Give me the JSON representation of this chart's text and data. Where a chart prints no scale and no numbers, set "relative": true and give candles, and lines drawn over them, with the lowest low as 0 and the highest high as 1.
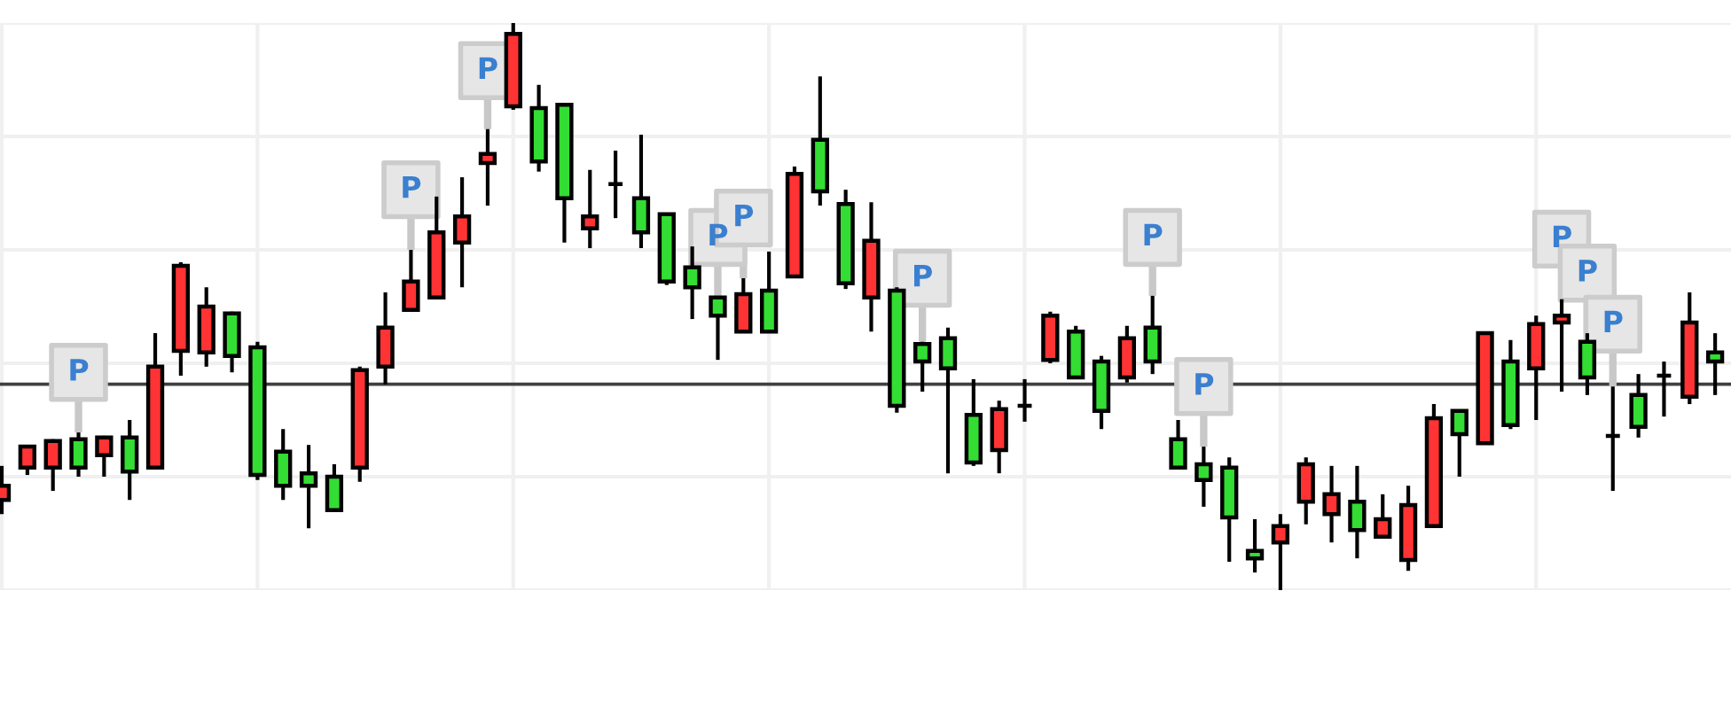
{
  "chart_data": {
    "type": "candlestick",
    "relative": true,
    "grid": true,
    "categories": [
      null,
      null,
      null,
      null,
      null,
      null,
      null,
      null,
      null,
      null,
      null,
      null,
      null,
      null,
      null,
      null,
      null,
      null,
      null,
      null,
      null,
      null,
      null,
      null,
      null,
      null,
      null,
      null,
      null,
      null,
      null,
      null,
      null,
      null,
      null,
      null,
      null,
      null,
      null,
      null,
      null,
      null,
      null,
      null,
      null,
      null,
      null,
      null,
      null,
      null,
      null,
      null,
      null,
      null,
      null,
      null,
      null,
      null,
      null,
      null,
      null,
      null,
      null,
      null,
      null,
      null,
      null,
      null
    ],
    "ohlc": [
      [
        0.159,
        0.219,
        0.134,
        0.184
      ],
      [
        0.216,
        0.256,
        0.203,
        0.253
      ],
      [
        0.216,
        0.266,
        0.175,
        0.263
      ],
      [
        0.266,
        0.278,
        0.2,
        0.216
      ],
      [
        0.238,
        0.272,
        0.2,
        0.269
      ],
      [
        0.269,
        0.3,
        0.159,
        0.209
      ],
      [
        0.216,
        0.453,
        0.216,
        0.394
      ],
      [
        0.422,
        0.578,
        0.378,
        0.572
      ],
      [
        0.419,
        0.534,
        0.394,
        0.5
      ],
      [
        0.488,
        0.491,
        0.384,
        0.413
      ],
      [
        0.428,
        0.438,
        0.194,
        0.203
      ],
      [
        0.244,
        0.284,
        0.159,
        0.184
      ],
      [
        0.206,
        0.256,
        0.109,
        0.184
      ],
      [
        0.2,
        0.222,
        0.141,
        0.141
      ],
      [
        0.216,
        0.394,
        0.191,
        0.388
      ],
      [
        0.394,
        0.525,
        0.363,
        0.463
      ],
      [
        0.494,
        0.6,
        0.494,
        0.544
      ],
      [
        0.516,
        0.694,
        0.516,
        0.631
      ],
      [
        0.613,
        0.728,
        0.534,
        0.659
      ],
      [
        0.753,
        0.813,
        0.678,
        0.769
      ],
      [
        0.853,
        1.0,
        0.847,
        0.981
      ],
      [
        0.85,
        0.891,
        0.738,
        0.756
      ],
      [
        0.856,
        0.856,
        0.613,
        0.691
      ],
      [
        0.638,
        0.741,
        0.603,
        0.659
      ],
      [
        0.716,
        0.775,
        0.656,
        0.716
      ],
      [
        0.691,
        0.803,
        0.603,
        0.631
      ],
      [
        0.663,
        0.663,
        0.538,
        0.544
      ],
      [
        0.569,
        0.606,
        0.478,
        0.534
      ],
      [
        0.516,
        0.516,
        0.406,
        0.484
      ],
      [
        0.456,
        0.55,
        0.456,
        0.522
      ],
      [
        0.528,
        0.597,
        0.456,
        0.456
      ],
      [
        0.553,
        0.747,
        0.553,
        0.734
      ],
      [
        0.794,
        0.906,
        0.678,
        0.703
      ],
      [
        0.681,
        0.706,
        0.531,
        0.541
      ],
      [
        0.516,
        0.684,
        0.456,
        0.616
      ],
      [
        0.528,
        0.534,
        0.313,
        0.325
      ],
      [
        0.434,
        0.438,
        0.35,
        0.403
      ],
      [
        0.444,
        0.463,
        0.206,
        0.391
      ],
      [
        0.309,
        0.372,
        0.219,
        0.225
      ],
      [
        0.247,
        0.334,
        0.206,
        0.319
      ],
      [
        0.325,
        0.372,
        0.297,
        0.325
      ],
      [
        0.406,
        0.491,
        0.4,
        0.484
      ],
      [
        0.456,
        0.466,
        0.375,
        0.375
      ],
      [
        0.403,
        0.413,
        0.284,
        0.316
      ],
      [
        0.375,
        0.466,
        0.366,
        0.444
      ],
      [
        0.463,
        0.519,
        0.381,
        0.403
      ],
      [
        0.266,
        0.3,
        0.216,
        0.216
      ],
      [
        0.222,
        0.253,
        0.147,
        0.194
      ],
      [
        0.216,
        0.234,
        0.05,
        0.128
      ],
      [
        0.069,
        0.125,
        0.031,
        0.056
      ],
      [
        0.084,
        0.134,
        0.0,
        0.113
      ],
      [
        0.156,
        0.234,
        0.116,
        0.222
      ],
      [
        0.134,
        0.219,
        0.084,
        0.169
      ],
      [
        0.156,
        0.219,
        0.056,
        0.106
      ],
      [
        0.094,
        0.169,
        0.094,
        0.125
      ],
      [
        0.053,
        0.184,
        0.034,
        0.15
      ],
      [
        0.113,
        0.328,
        0.113,
        0.303
      ],
      [
        0.316,
        0.316,
        0.2,
        0.275
      ],
      [
        0.259,
        0.453,
        0.259,
        0.453
      ],
      [
        0.403,
        0.441,
        0.284,
        0.291
      ],
      [
        0.391,
        0.484,
        0.3,
        0.469
      ],
      [
        0.472,
        0.513,
        0.35,
        0.484
      ],
      [
        0.438,
        0.453,
        0.344,
        0.375
      ],
      [
        0.272,
        0.359,
        0.175,
        0.272
      ],
      [
        0.344,
        0.381,
        0.269,
        0.288
      ],
      [
        0.378,
        0.403,
        0.306,
        0.378
      ],
      [
        0.341,
        0.525,
        0.328,
        0.472
      ],
      [
        0.419,
        0.453,
        0.344,
        0.403
      ]
    ],
    "colors": [
      "#ff3333",
      "#ff3333",
      "#ff3333",
      "#33dd33",
      "#ff3333",
      "#33dd33",
      "#ff3333",
      "#ff3333",
      "#ff3333",
      "#33dd33",
      "#33dd33",
      "#33dd33",
      "#33dd33",
      "#33dd33",
      "#ff3333",
      "#ff3333",
      "#ff3333",
      "#ff3333",
      "#ff3333",
      "#ff3333",
      "#ff3333",
      "#33dd33",
      "#33dd33",
      "#ff3333",
      "#000000",
      "#33dd33",
      "#33dd33",
      "#33dd33",
      "#33dd33",
      "#ff3333",
      "#33dd33",
      "#ff3333",
      "#33dd33",
      "#33dd33",
      "#ff3333",
      "#33dd33",
      "#33dd33",
      "#33dd33",
      "#33dd33",
      "#ff3333",
      "#000000",
      "#ff3333",
      "#33dd33",
      "#33dd33",
      "#ff3333",
      "#33dd33",
      "#33dd33",
      "#33dd33",
      "#33dd33",
      "#33dd33",
      "#ff3333",
      "#ff3333",
      "#ff3333",
      "#33dd33",
      "#ff3333",
      "#ff3333",
      "#ff3333",
      "#33dd33",
      "#ff3333",
      "#33dd33",
      "#ff3333",
      "#ff3333",
      "#33dd33",
      "#000000",
      "#33dd33",
      "#000000",
      "#ff3333",
      "#33dd33"
    ],
    "ref_lines": [
      {
        "axis": "y",
        "value": 0.363,
        "color": "#404040"
      }
    ],
    "series": [
      {
        "type": "scatter",
        "name": "P",
        "marker": "square",
        "color": "#e6e6e6",
        "values": [
          null,
          null,
          null,
          0.384,
          null,
          null,
          null,
          null,
          null,
          null,
          null,
          null,
          null,
          null,
          null,
          null,
          0.706,
          null,
          null,
          0.916,
          null,
          null,
          null,
          null,
          null,
          null,
          null,
          null,
          0.622,
          0.656,
          null,
          null,
          null,
          null,
          null,
          null,
          0.55,
          null,
          null,
          null,
          null,
          null,
          null,
          null,
          null,
          0.622,
          null,
          0.359,
          null,
          null,
          null,
          null,
          null,
          null,
          null,
          null,
          null,
          null,
          null,
          null,
          null,
          0.619,
          0.559,
          0.469,
          null,
          null,
          null,
          null
        ]
      }
    ]
  }
}
